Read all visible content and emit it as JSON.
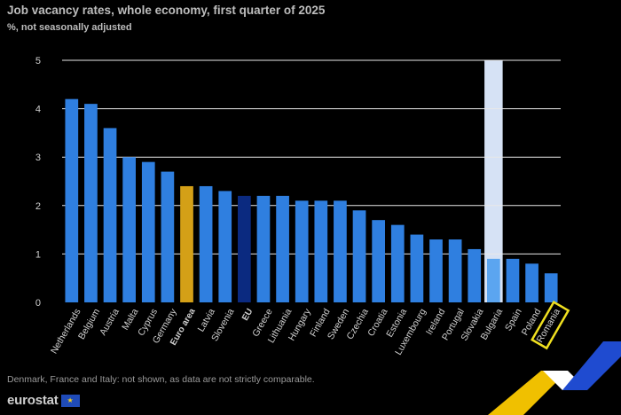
{
  "header": {
    "title": "Job vacancy rates, whole economy, first quarter of 2025",
    "subtitle": "%, not seasonally adjusted"
  },
  "footer": {
    "footnote": "Denmark, France and Italy: not shown, as data are not strictly comparable.",
    "logo_text": "eurostat",
    "flag_glyph": "★"
  },
  "colors": {
    "bar_default": "#2f7fe0",
    "bar_euro_area": "#d4a017",
    "bar_eu": "#0b2a80",
    "bar_bulgaria": "#5ba5f0",
    "highlight_column": "#d6e2f5",
    "highlight_box": "#f0e020",
    "gridline": "#e8e8e8"
  },
  "chart_data": {
    "type": "bar",
    "title": "Job vacancy rates, whole economy, first quarter of 2025",
    "subtitle": "%, not seasonally adjusted",
    "xlabel": "",
    "ylabel": "",
    "ylim": [
      0,
      5
    ],
    "yticks": [
      0,
      1,
      2,
      3,
      4,
      5
    ],
    "grid": true,
    "categories": [
      "Netherlands",
      "Belgium",
      "Austria",
      "Malta",
      "Cyprus",
      "Germany",
      "Euro area",
      "Latvia",
      "Slovenia",
      "EU",
      "Greece",
      "Lithuania",
      "Hungary",
      "Finland",
      "Sweden",
      "Czechia",
      "Croatia",
      "Estonia",
      "Luxembourg",
      "Ireland",
      "Portugal",
      "Slovakia",
      "Bulgaria",
      "Spain",
      "Poland",
      "Romania"
    ],
    "values": [
      4.2,
      4.1,
      3.6,
      3.0,
      2.9,
      2.7,
      2.4,
      2.4,
      2.3,
      2.2,
      2.2,
      2.2,
      2.1,
      2.1,
      2.1,
      1.9,
      1.7,
      1.6,
      1.4,
      1.3,
      1.3,
      1.1,
      0.9,
      0.9,
      0.8,
      0.6
    ],
    "bold_categories": [
      "Euro area",
      "EU"
    ],
    "highlighted_category": "Bulgaria",
    "boxed_category": "Romania"
  }
}
